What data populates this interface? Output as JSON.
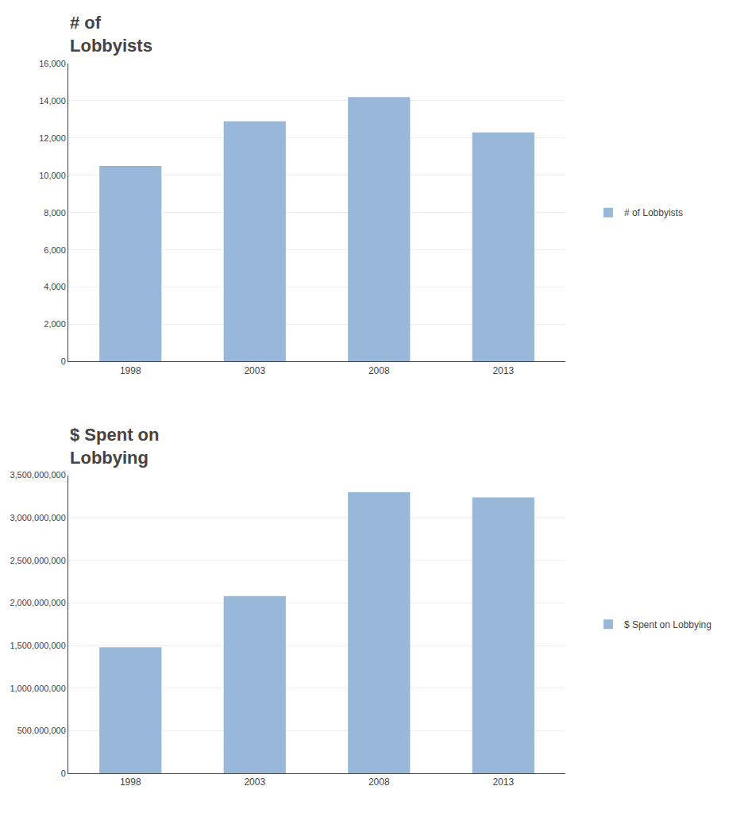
{
  "chart_data": [
    {
      "type": "bar",
      "title": "# of\nLobbyists",
      "categories": [
        "1998",
        "2003",
        "2008",
        "2013"
      ],
      "series": [
        {
          "name": "# of Lobbyists",
          "color": "#99b8d9",
          "values": [
            10500,
            12900,
            14200,
            12300
          ]
        }
      ],
      "ylim": [
        0,
        16000
      ],
      "yticks": [
        0,
        {
          "value": 2000,
          "label": "2,000"
        },
        {
          "value": 4000,
          "label": "4,000"
        },
        {
          "value": 6000,
          "label": "6,000"
        },
        {
          "value": 8000,
          "label": "8,000"
        },
        {
          "value": 10000,
          "label": "10,000"
        },
        {
          "value": 12000,
          "label": "12,000"
        },
        {
          "value": 14000,
          "label": "14,000"
        },
        {
          "value": 16000,
          "label": "16,000"
        }
      ],
      "grid": true,
      "legend": "right"
    },
    {
      "type": "bar",
      "title": "$ Spent on\nLobbying",
      "categories": [
        "1998",
        "2003",
        "2008",
        "2013"
      ],
      "series": [
        {
          "name": "$ Spent on Lobbying",
          "color": "#99b8d9",
          "values": [
            1480000000,
            2080000000,
            3300000000,
            3240000000
          ]
        }
      ],
      "ylim": [
        0,
        3500000000
      ],
      "yticks": [
        0,
        {
          "value": 500000000,
          "label": "500,000,000"
        },
        {
          "value": 1000000000,
          "label": "1,000,000,000"
        },
        {
          "value": 1500000000,
          "label": "1,500,000,000"
        },
        {
          "value": 2000000000,
          "label": "2,000,000,000"
        },
        {
          "value": 2500000000,
          "label": "2,500,000,000"
        },
        {
          "value": 3000000000,
          "label": "3,000,000,000"
        },
        {
          "value": 3500000000,
          "label": "3,500,000,000"
        }
      ],
      "grid": true,
      "legend": "right"
    }
  ]
}
